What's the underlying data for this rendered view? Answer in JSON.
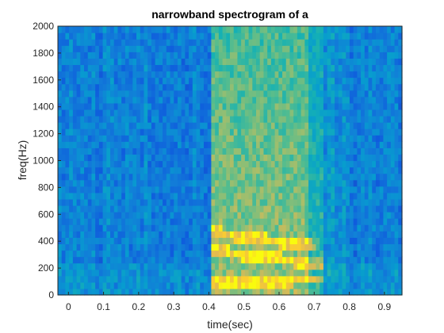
{
  "chart_data": {
    "type": "heatmap",
    "title": "narrowband spectrogram of a",
    "xlabel": "time(sec)",
    "ylabel": "freq(Hz)",
    "xlim": [
      -0.03,
      0.95
    ],
    "ylim": [
      0,
      2000
    ],
    "x_ticks": [
      "0",
      "0.1",
      "0.2",
      "0.3",
      "0.4",
      "0.5",
      "0.6",
      "0.7",
      "0.8",
      "0.9"
    ],
    "x_tick_values": [
      0,
      0.1,
      0.2,
      0.3,
      0.4,
      0.5,
      0.6,
      0.7,
      0.8,
      0.9
    ],
    "y_ticks": [
      "0",
      "200",
      "400",
      "600",
      "800",
      "1000",
      "1200",
      "1400",
      "1600",
      "1800",
      "2000"
    ],
    "y_tick_values": [
      0,
      200,
      400,
      600,
      800,
      1000,
      1200,
      1400,
      1600,
      1800,
      2000
    ],
    "grid": false,
    "colormap": "parula",
    "colors": {
      "low": "#1f6fd8",
      "mid": "#2ab0b0",
      "high": "#f6c52e",
      "peak": "#ffe23a"
    },
    "noise_level_outside": 0.32,
    "voiced_segment": {
      "t_start": 0.41,
      "t_end": 0.73,
      "level": 0.78
    },
    "harmonics": [
      {
        "t_start": 0.41,
        "t_end": 0.73,
        "f_start": 100,
        "f_end": 120
      },
      {
        "t_start": 0.41,
        "t_end": 0.73,
        "f_start": 330,
        "f_end": 230
      },
      {
        "t_start": 0.41,
        "t_end": 0.7,
        "f_start": 470,
        "f_end": 360
      }
    ]
  }
}
